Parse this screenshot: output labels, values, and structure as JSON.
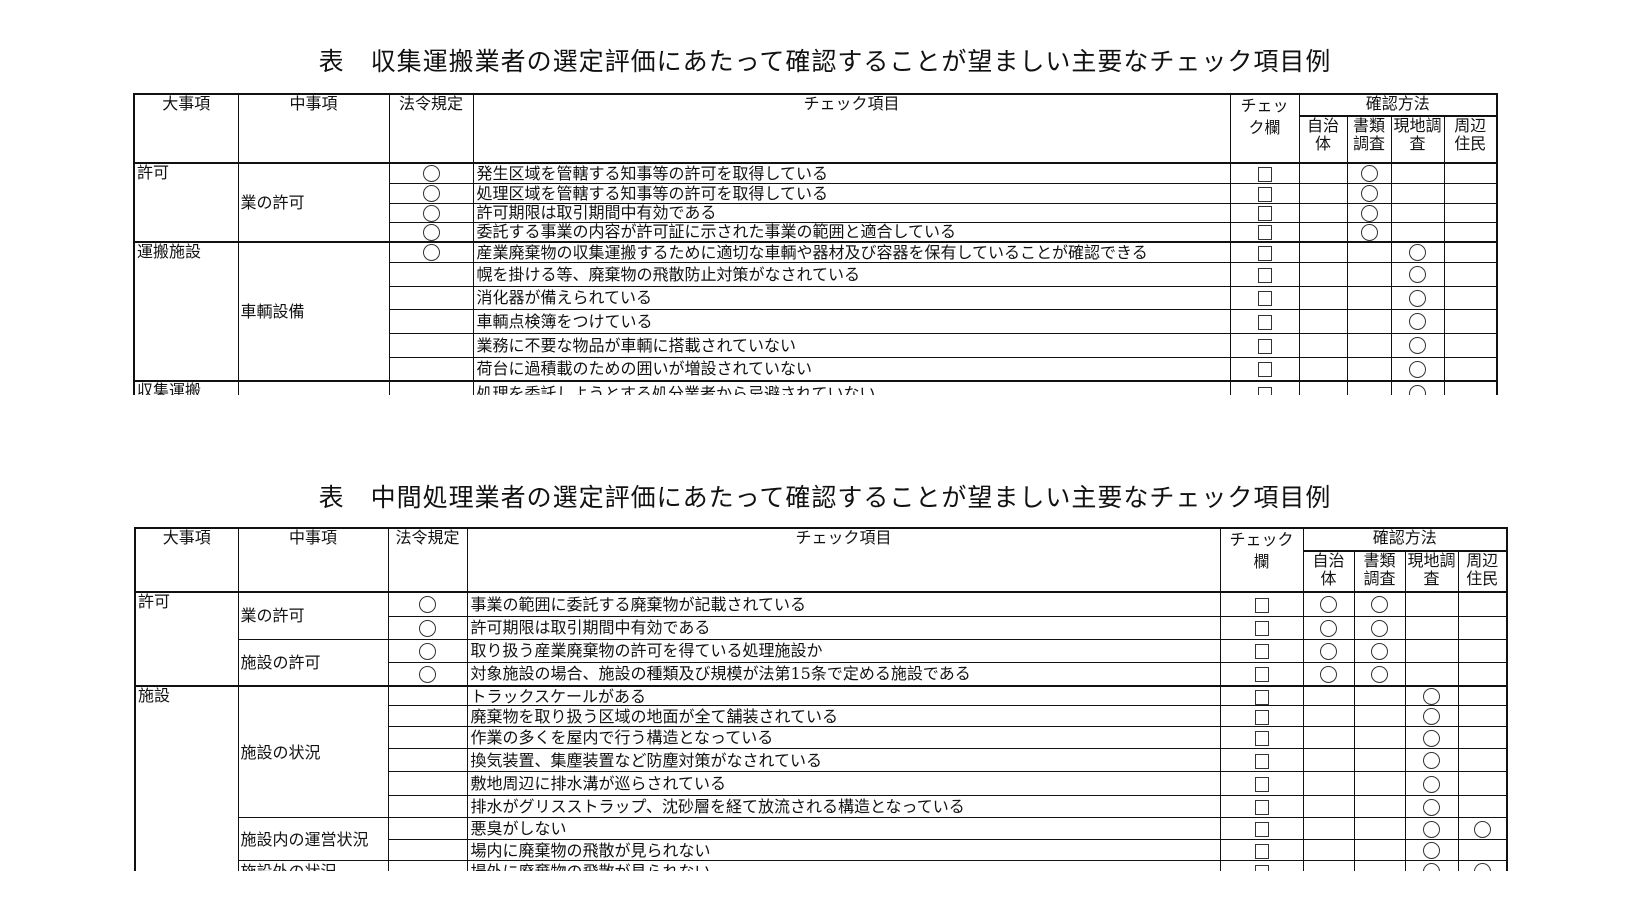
{
  "tables": [
    {
      "title": "表　収集運搬業者の選定評価にあたって確認することが望ましい主要なチェック項目例",
      "headers": {
        "major": "大事項",
        "middle": "中事項",
        "law": "法令規定",
        "item": "チェック項目",
        "check": "チェック欄",
        "method": "確認方法",
        "methods": [
          "自治体",
          "書類調査",
          "現地調査",
          "周辺住民"
        ]
      },
      "rows": [
        {
          "major": "許可",
          "major_span": 4,
          "middle": "業の許可",
          "middle_span": 4,
          "law": true,
          "item": "発生区域を管轄する知事等の許可を取得している",
          "methods": [
            false,
            true,
            false,
            false
          ]
        },
        {
          "law": true,
          "item": "処理区域を管轄する知事等の許可を取得している",
          "methods": [
            false,
            true,
            false,
            false
          ]
        },
        {
          "law": true,
          "item": "許可期限は取引期間中有効である",
          "methods": [
            false,
            true,
            false,
            false
          ]
        },
        {
          "law": true,
          "item": "委託する事業の内容が許可証に示された事業の範囲と適合している",
          "methods": [
            false,
            true,
            false,
            false
          ]
        },
        {
          "major": "運搬施設",
          "major_span": 6,
          "middle": "車輌設備",
          "middle_span": 6,
          "law": true,
          "item": "産業廃棄物の収集運搬するために適切な車輌や器材及び容器を保有していることが確認できる",
          "methods": [
            false,
            false,
            true,
            false
          ]
        },
        {
          "law": false,
          "item": "幌を掛ける等、廃棄物の飛散防止対策がなされている",
          "methods": [
            false,
            false,
            true,
            false
          ]
        },
        {
          "law": false,
          "item": "消化器が備えられている",
          "methods": [
            false,
            false,
            true,
            false
          ]
        },
        {
          "law": false,
          "item": "車輌点検簿をつけている",
          "methods": [
            false,
            false,
            true,
            false
          ]
        },
        {
          "law": false,
          "item": "業務に不要な物品が車輌に搭載されていない",
          "methods": [
            false,
            false,
            true,
            false
          ]
        },
        {
          "law": false,
          "item": "荷台に過積載のための囲いが増設されていない",
          "methods": [
            false,
            false,
            true,
            false
          ]
        },
        {
          "major": "収集運搬",
          "major_span": 1,
          "middle": "",
          "middle_span": 1,
          "law": false,
          "item": "処理を委託しようとする処分業者から忌避されていない",
          "methods": [
            false,
            false,
            true,
            false
          ]
        }
      ]
    },
    {
      "title": "表　中間処理業者の選定評価にあたって確認することが望ましい主要なチェック項目例",
      "headers": {
        "major": "大事項",
        "middle": "中事項",
        "law": "法令規定",
        "item": "チェック項目",
        "check": "チェック欄",
        "method": "確認方法",
        "methods": [
          "自治体",
          "書類調査",
          "現地調査",
          "周辺住民"
        ]
      },
      "rows": [
        {
          "major": "許可",
          "major_span": 4,
          "middle": "業の許可",
          "middle_span": 2,
          "law": true,
          "item": "事業の範囲に委託する廃棄物が記載されている",
          "methods": [
            true,
            true,
            false,
            false
          ]
        },
        {
          "law": true,
          "item": "許可期限は取引期間中有効である",
          "methods": [
            true,
            true,
            false,
            false
          ]
        },
        {
          "middle": "施設の許可",
          "middle_span": 2,
          "law": true,
          "item": "取り扱う産業廃棄物の許可を得ている処理施設か",
          "methods": [
            true,
            true,
            false,
            false
          ]
        },
        {
          "law": true,
          "item": "対象施設の場合、施設の種類及び規模が法第15条で定める施設である",
          "methods": [
            true,
            true,
            false,
            false
          ]
        },
        {
          "major": "施設",
          "major_span": 9,
          "middle": "施設の状況",
          "middle_span": 6,
          "law": false,
          "item": "トラックスケールがある",
          "methods": [
            false,
            false,
            true,
            false
          ]
        },
        {
          "law": false,
          "item": "廃棄物を取り扱う区域の地面が全て舗装されている",
          "methods": [
            false,
            false,
            true,
            false
          ]
        },
        {
          "law": false,
          "item": "作業の多くを屋内で行う構造となっている",
          "methods": [
            false,
            false,
            true,
            false
          ]
        },
        {
          "law": false,
          "item": "換気装置、集塵装置など防塵対策がなされている",
          "methods": [
            false,
            false,
            true,
            false
          ]
        },
        {
          "law": false,
          "item": "敷地周辺に排水溝が巡らされている",
          "methods": [
            false,
            false,
            true,
            false
          ]
        },
        {
          "law": false,
          "item": "排水がグリスストラップ、沈砂層を経て放流される構造となっている",
          "methods": [
            false,
            false,
            true,
            false
          ]
        },
        {
          "middle": "施設内の運営状況",
          "middle_span": 2,
          "law": false,
          "item": "悪臭がしない",
          "methods": [
            false,
            false,
            true,
            true
          ]
        },
        {
          "law": false,
          "item": "場内に廃棄物の飛散が見られない",
          "methods": [
            false,
            false,
            true,
            false
          ]
        },
        {
          "middle": "施設外の状況",
          "middle_span": 1,
          "law": false,
          "item": "場外に廃棄物の飛散が見られない",
          "methods": [
            false,
            false,
            true,
            true
          ]
        }
      ]
    }
  ]
}
